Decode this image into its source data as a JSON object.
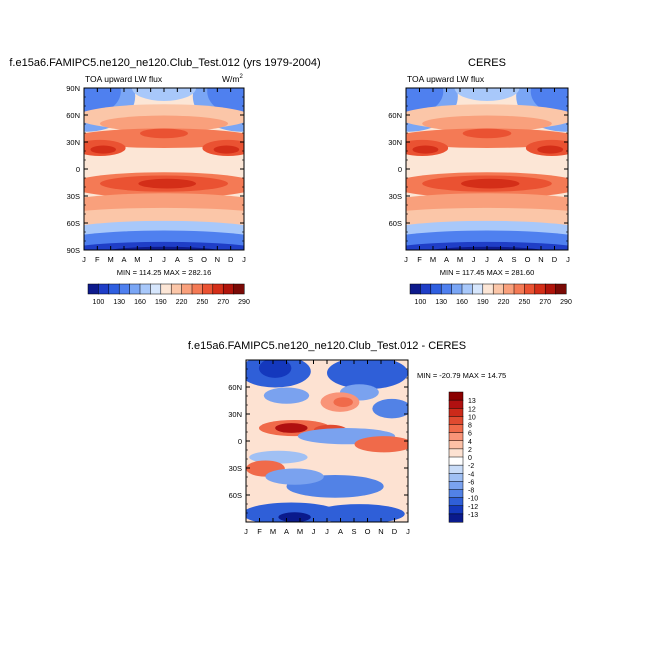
{
  "chart_data": [
    {
      "type": "heatmap",
      "title": "f.e15a6.FAMIPC5.ne120_ne120.Club_Test.012 (yrs 1979-2004)",
      "subtitle_left": "TOA upward LW flux",
      "units": "W/m",
      "units_sup": "2",
      "x_ticks": [
        "J",
        "F",
        "M",
        "A",
        "M",
        "J",
        "J",
        "A",
        "S",
        "O",
        "N",
        "D",
        "J"
      ],
      "y_ticks": [
        "90N",
        "60N",
        "30N",
        "0",
        "30S",
        "60S",
        "90S"
      ],
      "stats": "MIN = 114.25  MAX = 282.16",
      "colorbar_labels": [
        "100",
        "130",
        "160",
        "190",
        "220",
        "250",
        "270",
        "290"
      ],
      "colorbar_colors": [
        "#0d1a8c",
        "#1f3ec7",
        "#2f5fe0",
        "#4f80ef",
        "#7aa6f5",
        "#a8c8fa",
        "#d6e6fc",
        "#fce6d6",
        "#fbc6a8",
        "#f9a07c",
        "#f47a55",
        "#ea5232",
        "#d42e18",
        "#b0140b",
        "#7a0a06"
      ]
    },
    {
      "type": "heatmap",
      "title": "CERES",
      "subtitle_left": "TOA upward LW flux",
      "x_ticks": [
        "J",
        "F",
        "M",
        "A",
        "M",
        "J",
        "J",
        "A",
        "S",
        "O",
        "N",
        "D",
        "J"
      ],
      "y_ticks": [
        "60N",
        "30N",
        "0",
        "30S",
        "60S"
      ],
      "stats": "MIN = 117.45  MAX = 281.60",
      "colorbar_labels": [
        "100",
        "130",
        "160",
        "190",
        "220",
        "250",
        "270",
        "290"
      ],
      "colorbar_colors": [
        "#0d1a8c",
        "#1f3ec7",
        "#2f5fe0",
        "#4f80ef",
        "#7aa6f5",
        "#a8c8fa",
        "#d6e6fc",
        "#fce6d6",
        "#fbc6a8",
        "#f9a07c",
        "#f47a55",
        "#ea5232",
        "#d42e18",
        "#b0140b",
        "#7a0a06"
      ]
    },
    {
      "type": "heatmap",
      "title": "f.e15a6.FAMIPC5.ne120_ne120.Club_Test.012 - CERES",
      "x_ticks": [
        "J",
        "F",
        "M",
        "A",
        "M",
        "J",
        "J",
        "A",
        "S",
        "O",
        "N",
        "D",
        "J"
      ],
      "y_ticks": [
        "60N",
        "30N",
        "0",
        "30S",
        "60S"
      ],
      "stats": "MIN = -20.79  MAX =  14.75",
      "colorbar_labels": [
        "13",
        "12",
        "10",
        "8",
        "6",
        "4",
        "2",
        "0",
        "-2",
        "-4",
        "-6",
        "-8",
        "-10",
        "-12",
        "-13"
      ],
      "colorbar_colors": [
        "#8b0000",
        "#b01010",
        "#cc2a1a",
        "#e04a30",
        "#f06a4a",
        "#f99478",
        "#fcc0a6",
        "#fde2d2",
        "#ffffff",
        "#c9dcf8",
        "#a0c0f4",
        "#7aa2ef",
        "#5282e6",
        "#2f5fd8",
        "#1438bd",
        "#0a1a8c"
      ]
    }
  ]
}
